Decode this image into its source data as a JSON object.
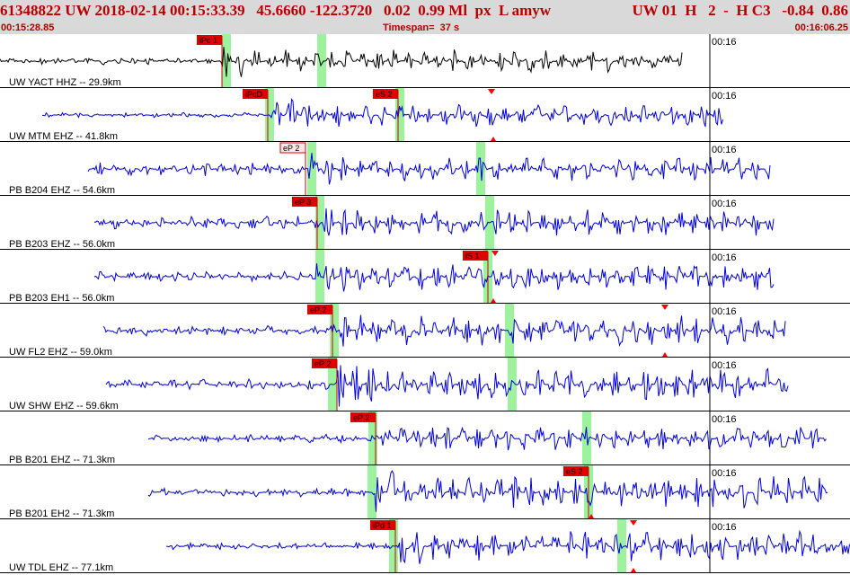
{
  "header": {
    "event_info": "61348822 UW 2018-02-14 00:15:33.39   45.6660 -122.3720   0.02  0.99 Ml  px  L amyw",
    "channel_info": "UW 01  H   2  -  H C3   -0.84  0.86",
    "start_time": "00:15:28.85",
    "timespan_label": "Timespan=  37 s",
    "end_time": "00:16:06.25"
  },
  "colors": {
    "header_bg": "#d9d9d9",
    "header_text": "#b80000",
    "trace_selected": "#000000",
    "trace": "#0000dd",
    "pick_box": "#e00000",
    "pick_box_alt_fill": "#ffe6e6",
    "phase_window": "#9ef29e",
    "pick_line": "#cc0000",
    "marker": "#ff0000"
  },
  "traces": [
    {
      "station": "UW YACT HHZ -- 29.9km",
      "time_tick": "00:16",
      "color": "black",
      "wave_start": 0,
      "wave_end": 760,
      "pre_amp": 4,
      "post_amp": 13,
      "onset": 247,
      "seed": 3,
      "picks": [
        {
          "label": "iPc 1",
          "x": 247,
          "style": "red"
        }
      ],
      "windows": [
        252,
        358
      ],
      "markers": []
    },
    {
      "station": "UW MTM EHZ -- 41.8km",
      "time_tick": "00:16",
      "color": "blue",
      "wave_start": 47,
      "wave_end": 805,
      "pre_amp": 3,
      "post_amp": 15,
      "onset": 298,
      "seed": 7,
      "picks": [
        {
          "label": "iPcD",
          "x": 298,
          "style": "red"
        },
        {
          "label": "eS 2",
          "x": 443,
          "style": "red"
        }
      ],
      "windows": [
        300,
        445
      ],
      "markers": [
        {
          "x": 547,
          "dir": "down"
        },
        {
          "x": 549,
          "dir": "up"
        }
      ]
    },
    {
      "station": "PB B204 EHZ -- 54.6km",
      "time_tick": "00:16",
      "color": "blue",
      "wave_start": 98,
      "wave_end": 857,
      "pre_amp": 8,
      "post_amp": 14,
      "onset": 340,
      "seed": 11,
      "picks": [
        {
          "label": "eP 2",
          "x": 340,
          "style": "outline"
        }
      ],
      "windows": [
        347,
        535
      ],
      "markers": []
    },
    {
      "station": "PB B203 EHZ -- 56.0km",
      "time_tick": "00:16",
      "color": "blue",
      "wave_start": 105,
      "wave_end": 862,
      "pre_amp": 8,
      "post_amp": 15,
      "onset": 353,
      "seed": 17,
      "picks": [
        {
          "label": "eP 3",
          "x": 353,
          "style": "red"
        }
      ],
      "windows": [
        356,
        545
      ],
      "markers": []
    },
    {
      "station": "PB B203 EH1 -- 56.0km",
      "time_tick": "00:16",
      "color": "blue",
      "wave_start": 105,
      "wave_end": 862,
      "pre_amp": 6,
      "post_amp": 16,
      "onset": 352,
      "seed": 23,
      "picks": [
        {
          "label": "iS 1",
          "x": 543,
          "style": "red"
        }
      ],
      "windows": [
        356,
        543
      ],
      "markers": [
        {
          "x": 551,
          "dir": "down"
        },
        {
          "x": 549,
          "dir": "up"
        }
      ]
    },
    {
      "station": "UW FL2 EHZ -- 59.0km",
      "time_tick": "00:16",
      "color": "blue",
      "wave_start": 115,
      "wave_end": 875,
      "pre_amp": 6,
      "post_amp": 17,
      "onset": 370,
      "seed": 29,
      "picks": [
        {
          "label": "eP 2",
          "x": 370,
          "style": "red"
        }
      ],
      "windows": [
        372,
        567
      ],
      "markers": [
        {
          "x": 740,
          "dir": "down"
        },
        {
          "x": 740,
          "dir": "up"
        }
      ]
    },
    {
      "station": "UW SHW EHZ -- 59.6km",
      "time_tick": "00:16",
      "color": "blue",
      "wave_start": 118,
      "wave_end": 878,
      "pre_amp": 6,
      "post_amp": 18,
      "onset": 375,
      "seed": 31,
      "picks": [
        {
          "label": "eP 2",
          "x": 375,
          "style": "red"
        }
      ],
      "windows": [
        370,
        570
      ],
      "markers": []
    },
    {
      "station": "PB B201 EHZ -- 71.3km",
      "time_tick": "00:16",
      "color": "blue",
      "wave_start": 165,
      "wave_end": 920,
      "pre_amp": 5,
      "post_amp": 14,
      "onset": 418,
      "seed": 37,
      "picks": [
        {
          "label": "eP 2",
          "x": 418,
          "style": "red"
        }
      ],
      "windows": [
        415,
        653
      ],
      "markers": []
    },
    {
      "station": "PB B201 EH2 -- 71.3km",
      "time_tick": "00:16",
      "color": "blue",
      "wave_start": 165,
      "wave_end": 922,
      "pre_amp": 5,
      "post_amp": 18,
      "onset": 418,
      "seed": 41,
      "picks": [
        {
          "label": "eS 2",
          "x": 655,
          "style": "red"
        }
      ],
      "windows": [
        414,
        655
      ],
      "markers": [
        {
          "x": 658,
          "dir": "up"
        }
      ]
    },
    {
      "station": "UW TDL EHZ -- 77.1km",
      "time_tick": "00:16",
      "color": "blue",
      "wave_start": 185,
      "wave_end": 946,
      "pre_amp": 4,
      "post_amp": 17,
      "onset": 440,
      "seed": 43,
      "picks": [
        {
          "label": "iPd 1",
          "x": 440,
          "style": "red"
        }
      ],
      "windows": [
        438,
        692
      ],
      "markers": [
        {
          "x": 705,
          "dir": "down"
        },
        {
          "x": 705,
          "dir": "up"
        }
      ]
    }
  ]
}
